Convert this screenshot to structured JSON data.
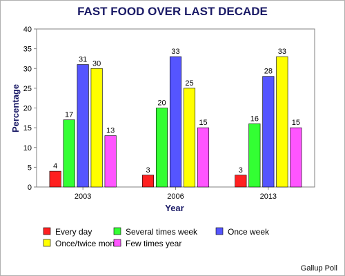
{
  "chart_data": {
    "type": "bar",
    "title": "FAST FOOD OVER LAST DECADE",
    "xlabel": "Year",
    "ylabel": "Percentage",
    "ylim": [
      0,
      40
    ],
    "yticks": [
      0,
      5,
      10,
      15,
      20,
      25,
      30,
      35,
      40
    ],
    "grid": false,
    "legend_position": "bottom",
    "categories": [
      "2003",
      "2006",
      "2013"
    ],
    "series": [
      {
        "name": "Every day",
        "color": "#ff2020",
        "values": [
          4,
          3,
          3
        ]
      },
      {
        "name": "Several times week",
        "color": "#33ff33",
        "values": [
          17,
          20,
          16
        ]
      },
      {
        "name": "Once week",
        "color": "#5555ff",
        "values": [
          31,
          33,
          28
        ]
      },
      {
        "name": "Once/twice month",
        "color": "#ffff00",
        "values": [
          30,
          25,
          33
        ]
      },
      {
        "name": "Few times year",
        "color": "#ff55ff",
        "values": [
          13,
          15,
          15
        ]
      }
    ]
  },
  "source_note": "Gallup Poll"
}
